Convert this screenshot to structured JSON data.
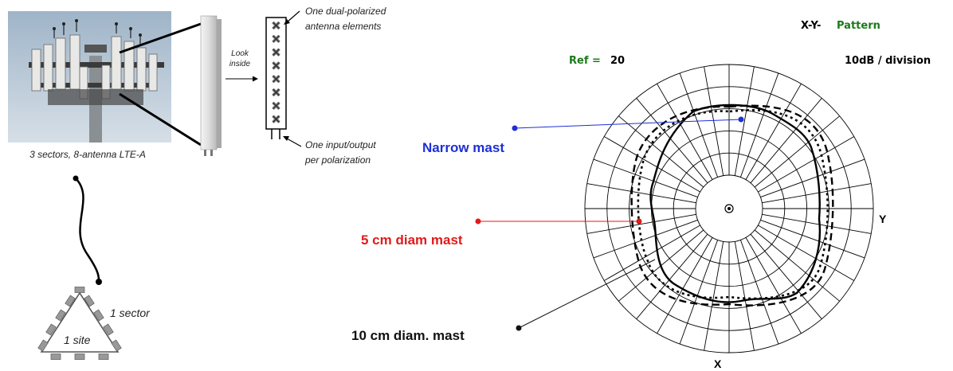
{
  "photo": {
    "caption": "3 sectors, 8-antenna LTE-A"
  },
  "antenna": {
    "look_inside": [
      "Look",
      "inside"
    ],
    "elements_label": [
      "One dual-polarized",
      "antenna elements"
    ],
    "io_label": [
      "One input/output",
      "per polarization"
    ],
    "element_count": 8
  },
  "site": {
    "sector_label": "1 sector",
    "site_label": "1 site"
  },
  "pattern": {
    "title_prefix": "X-Y-",
    "title_word": "Pattern",
    "ref_label": "Ref =",
    "ref_value": "20",
    "scale_label": "10dB / division",
    "axis_y": "Y",
    "axis_x": "X",
    "rings": 5,
    "radials": 36
  },
  "callouts": {
    "narrow": "Narrow mast",
    "mast5": "5 cm diam mast",
    "mast10": "10 cm diam. mast"
  },
  "colors": {
    "narrow": "#1d2fd6",
    "mast5": "#e01b1b",
    "mast10": "#111111",
    "title_green": "#1b7a1b"
  }
}
